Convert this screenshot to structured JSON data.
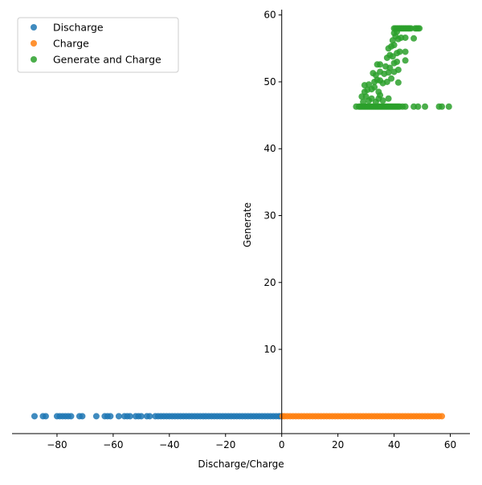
{
  "chart_data": {
    "type": "scatter",
    "xlabel": "Discharge/Charge",
    "ylabel": "Generate",
    "xlim": [
      -96,
      67
    ],
    "ylim": [
      -2.6,
      60.8
    ],
    "xticks": [
      -80,
      -60,
      -40,
      -20,
      0,
      20,
      40,
      60
    ],
    "yticks": [
      10,
      20,
      30,
      40,
      50,
      60
    ],
    "xtick_labels": [
      "−80",
      "−60",
      "−40",
      "−20",
      "0",
      "20",
      "40",
      "60"
    ],
    "ytick_labels": [
      "10",
      "20",
      "30",
      "40",
      "50",
      "60"
    ],
    "legend_position": "upper-left",
    "series": [
      {
        "name": "Discharge",
        "color": "#1f77b4",
        "points": [
          [
            -88,
            0
          ],
          [
            -85,
            0
          ],
          [
            -84,
            0
          ],
          [
            -80,
            0
          ],
          [
            -79,
            0
          ],
          [
            -78,
            0
          ],
          [
            -77,
            0
          ],
          [
            -76,
            0
          ],
          [
            -75,
            0
          ],
          [
            -72,
            0
          ],
          [
            -71,
            0
          ],
          [
            -66,
            0
          ],
          [
            -63,
            0
          ],
          [
            -62,
            0
          ],
          [
            -61,
            0
          ],
          [
            -58,
            0
          ],
          [
            -56,
            0
          ],
          [
            -55,
            0
          ],
          [
            -54,
            0
          ],
          [
            -52,
            0
          ],
          [
            -51,
            0
          ],
          [
            -50,
            0
          ],
          [
            -48,
            0
          ],
          [
            -47,
            0
          ],
          [
            -45,
            0
          ],
          [
            -44,
            0
          ],
          [
            -43,
            0
          ],
          [
            -42,
            0
          ],
          [
            -41,
            0
          ],
          [
            -40,
            0
          ],
          [
            -39,
            0
          ],
          [
            -38,
            0
          ],
          [
            -37,
            0
          ],
          [
            -36,
            0
          ],
          [
            -35,
            0
          ],
          [
            -34,
            0
          ],
          [
            -33,
            0
          ],
          [
            -32,
            0
          ],
          [
            -31,
            0
          ],
          [
            -30,
            0
          ],
          [
            -29,
            0
          ],
          [
            -28,
            0
          ],
          [
            -27,
            0
          ],
          [
            -26,
            0
          ],
          [
            -25,
            0
          ],
          [
            -24,
            0
          ],
          [
            -23,
            0
          ],
          [
            -22,
            0
          ],
          [
            -21,
            0
          ],
          [
            -20,
            0
          ],
          [
            -19,
            0
          ],
          [
            -18,
            0
          ],
          [
            -17,
            0
          ],
          [
            -16,
            0
          ],
          [
            -15,
            0
          ],
          [
            -14,
            0
          ],
          [
            -13,
            0
          ],
          [
            -12,
            0
          ],
          [
            -11,
            0
          ],
          [
            -10,
            0
          ],
          [
            -9,
            0
          ],
          [
            -8,
            0
          ],
          [
            -7,
            0
          ],
          [
            -6,
            0
          ],
          [
            -5,
            0
          ],
          [
            -4,
            0
          ],
          [
            -3,
            0
          ],
          [
            -2,
            0
          ],
          [
            -1,
            0
          ],
          [
            -0.3,
            0
          ]
        ]
      },
      {
        "name": "Charge",
        "color": "#ff7f0e",
        "points": [
          [
            0.3,
            0
          ],
          [
            1,
            0
          ],
          [
            2,
            0
          ],
          [
            3,
            0
          ],
          [
            4,
            0
          ],
          [
            5,
            0
          ],
          [
            6,
            0
          ],
          [
            7,
            0
          ],
          [
            8,
            0
          ],
          [
            9,
            0
          ],
          [
            10,
            0
          ],
          [
            11,
            0
          ],
          [
            12,
            0
          ],
          [
            13,
            0
          ],
          [
            14,
            0
          ],
          [
            15,
            0
          ],
          [
            16,
            0
          ],
          [
            17,
            0
          ],
          [
            18,
            0
          ],
          [
            19,
            0
          ],
          [
            20,
            0
          ],
          [
            21,
            0
          ],
          [
            22,
            0
          ],
          [
            23,
            0
          ],
          [
            24,
            0
          ],
          [
            25,
            0
          ],
          [
            26,
            0
          ],
          [
            27,
            0
          ],
          [
            28,
            0
          ],
          [
            29,
            0
          ],
          [
            30,
            0
          ],
          [
            31,
            0
          ],
          [
            32,
            0
          ],
          [
            33,
            0
          ],
          [
            34,
            0
          ],
          [
            35,
            0
          ],
          [
            36,
            0
          ],
          [
            37,
            0
          ],
          [
            38,
            0
          ],
          [
            39,
            0
          ],
          [
            40,
            0
          ],
          [
            41,
            0
          ],
          [
            42,
            0
          ],
          [
            43,
            0
          ],
          [
            44,
            0
          ],
          [
            45,
            0
          ],
          [
            46,
            0
          ],
          [
            47,
            0
          ],
          [
            48,
            0
          ],
          [
            49,
            0
          ],
          [
            50,
            0
          ],
          [
            51,
            0
          ],
          [
            52,
            0
          ],
          [
            53,
            0
          ],
          [
            54,
            0
          ],
          [
            55,
            0
          ],
          [
            56,
            0
          ],
          [
            57,
            0
          ]
        ]
      },
      {
        "name": "Generate and Charge",
        "color": "#2ca02c",
        "points": [
          [
            26.5,
            46.3
          ],
          [
            27.5,
            46.3
          ],
          [
            28,
            46.3
          ],
          [
            28.5,
            46.3
          ],
          [
            29,
            46.3
          ],
          [
            29.5,
            46.3
          ],
          [
            30,
            46.3
          ],
          [
            30.5,
            46.3
          ],
          [
            31,
            46.3
          ],
          [
            31.5,
            46.3
          ],
          [
            32,
            46.3
          ],
          [
            32.5,
            46.3
          ],
          [
            33,
            46.3
          ],
          [
            33.5,
            46.3
          ],
          [
            34,
            46.3
          ],
          [
            34.5,
            46.3
          ],
          [
            35,
            46.3
          ],
          [
            35.5,
            46.3
          ],
          [
            36,
            46.3
          ],
          [
            36.5,
            46.3
          ],
          [
            37,
            46.3
          ],
          [
            37.5,
            46.3
          ],
          [
            38,
            46.3
          ],
          [
            38.5,
            46.3
          ],
          [
            39,
            46.3
          ],
          [
            39.5,
            46.3
          ],
          [
            40,
            46.3
          ],
          [
            40.5,
            46.3
          ],
          [
            41,
            46.3
          ],
          [
            41.5,
            46.3
          ],
          [
            42,
            46.3
          ],
          [
            43,
            46.3
          ],
          [
            44,
            46.3
          ],
          [
            47,
            46.3
          ],
          [
            48.5,
            46.3
          ],
          [
            51,
            46.3
          ],
          [
            56,
            46.3
          ],
          [
            57,
            46.3
          ],
          [
            59.5,
            46.3
          ],
          [
            29,
            47
          ],
          [
            30,
            47.8
          ],
          [
            31,
            47.2
          ],
          [
            28.5,
            47.8
          ],
          [
            32,
            47.5
          ],
          [
            33.5,
            47
          ],
          [
            34.5,
            47.5
          ],
          [
            35,
            48
          ],
          [
            36,
            47.2
          ],
          [
            38,
            47.5
          ],
          [
            29.5,
            48.5
          ],
          [
            30.5,
            48.8
          ],
          [
            32,
            48.9
          ],
          [
            33,
            49.2
          ],
          [
            34.5,
            48.5
          ],
          [
            29.5,
            49.5
          ],
          [
            31,
            49.6
          ],
          [
            33,
            50
          ],
          [
            34,
            50.3
          ],
          [
            35,
            50.2
          ],
          [
            36,
            49.8
          ],
          [
            37.5,
            50
          ],
          [
            39,
            50.5
          ],
          [
            41.5,
            49.9
          ],
          [
            32.5,
            51.3
          ],
          [
            33.5,
            51
          ],
          [
            35,
            51.5
          ],
          [
            36.5,
            51.2
          ],
          [
            38,
            51.4
          ],
          [
            40,
            51.5
          ],
          [
            41.5,
            51.8
          ],
          [
            34,
            52.6
          ],
          [
            35,
            52.6
          ],
          [
            37,
            52.3
          ],
          [
            38.5,
            52.1
          ],
          [
            40,
            52.8
          ],
          [
            41,
            53
          ],
          [
            44,
            53.2
          ],
          [
            37.5,
            53.6
          ],
          [
            38.5,
            54
          ],
          [
            39.5,
            53.8
          ],
          [
            41,
            54.3
          ],
          [
            42,
            54.5
          ],
          [
            44,
            54.5
          ],
          [
            38,
            55
          ],
          [
            39,
            55.3
          ],
          [
            40,
            55.5
          ],
          [
            39.5,
            56.2
          ],
          [
            40.5,
            56.8
          ],
          [
            41.5,
            56.4
          ],
          [
            42.5,
            56.6
          ],
          [
            44,
            56.6
          ],
          [
            47,
            56.5
          ],
          [
            40,
            57.3
          ],
          [
            41,
            57.5
          ],
          [
            40,
            58
          ],
          [
            40.5,
            58
          ],
          [
            41,
            58
          ],
          [
            41.5,
            58
          ],
          [
            42,
            58
          ],
          [
            42.5,
            58
          ],
          [
            43,
            58
          ],
          [
            43.5,
            58
          ],
          [
            44,
            58
          ],
          [
            44.5,
            58
          ],
          [
            45,
            58
          ],
          [
            45.5,
            58
          ],
          [
            46,
            58
          ],
          [
            47.5,
            58
          ],
          [
            48,
            58
          ],
          [
            48.5,
            58
          ],
          [
            49,
            58
          ]
        ]
      }
    ]
  }
}
